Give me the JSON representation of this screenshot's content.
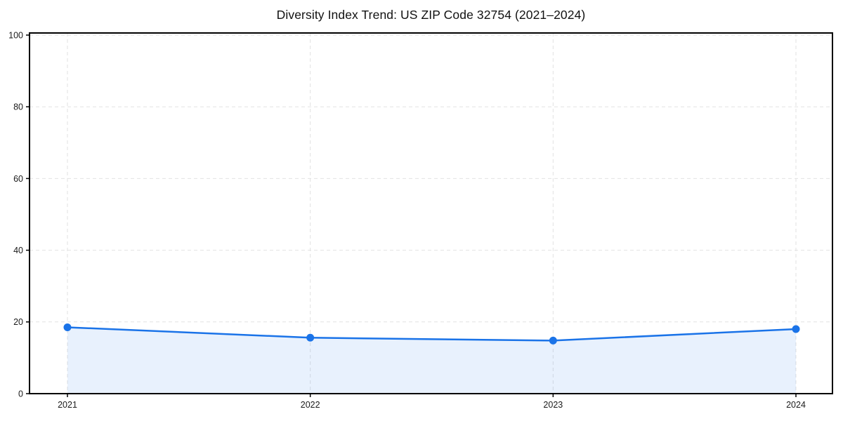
{
  "chart_data": {
    "type": "area",
    "title": "Diversity Index Trend: US ZIP Code 32754 (2021–2024)",
    "categories": [
      "2021",
      "2022",
      "2023",
      "2024"
    ],
    "values": [
      18.5,
      15.6,
      14.8,
      18.0
    ],
    "series_name": "Diversity Index",
    "xlabel": "",
    "ylabel": "",
    "ylim": [
      0,
      100
    ],
    "yticks": [
      0,
      20,
      40,
      60,
      80,
      100
    ],
    "grid": "dashed-both-axes",
    "legend": "none",
    "colors": {
      "line": "#1a73e8",
      "marker": "#1a73e8",
      "fill": "rgba(26,115,232,0.10)",
      "grid": "#e2e2e2",
      "spine": "#000000",
      "tick_text": "#1a1a1a",
      "background": "#ffffff"
    }
  }
}
